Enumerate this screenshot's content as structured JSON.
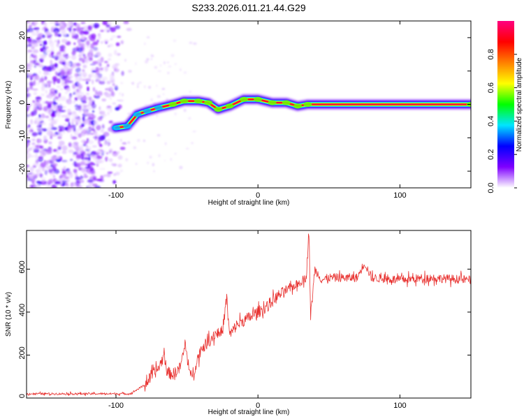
{
  "title": "S233.2026.011.21.44.G29",
  "chart_data": [
    {
      "type": "heatmap",
      "name": "spectrogram",
      "xlabel": "Height of straight line (km)",
      "ylabel": "Frequency (Hz)",
      "xlim": [
        -163,
        150
      ],
      "ylim": [
        -25,
        25
      ],
      "xticks": [
        -100,
        0,
        100
      ],
      "yticks": [
        -20,
        -10,
        0,
        10,
        20
      ],
      "noise_region": {
        "x_from": -163,
        "x_to": -90
      },
      "ridge": [
        {
          "x": -100,
          "y": -7
        },
        {
          "x": -92,
          "y": -6.5
        },
        {
          "x": -85,
          "y": -3
        },
        {
          "x": -78,
          "y": -2
        },
        {
          "x": -70,
          "y": -1
        },
        {
          "x": -60,
          "y": 0
        },
        {
          "x": -52,
          "y": 1
        },
        {
          "x": -42,
          "y": 1
        },
        {
          "x": -35,
          "y": 0.5
        },
        {
          "x": -28,
          "y": -1.5
        },
        {
          "x": -20,
          "y": -0.5
        },
        {
          "x": -10,
          "y": 1.5
        },
        {
          "x": 0,
          "y": 1.5
        },
        {
          "x": 10,
          "y": 0.5
        },
        {
          "x": 20,
          "y": 0.5
        },
        {
          "x": 28,
          "y": -0.5
        },
        {
          "x": 35,
          "y": 0
        },
        {
          "x": 150,
          "y": 0
        }
      ],
      "colorbar": {
        "label": "Normalized spectral amplitude",
        "ticks": [
          0.0,
          0.2,
          0.4,
          0.6,
          0.8
        ],
        "colors": [
          "#ffffff",
          "#7f00ff",
          "#0000ff",
          "#00e5ff",
          "#00ff00",
          "#ffff00",
          "#ff8000",
          "#ff0000",
          "#ff0080"
        ]
      }
    },
    {
      "type": "line",
      "name": "snr",
      "xlabel": "Height of straight line (km)",
      "ylabel": "SNR (10 * v/v)",
      "xlim": [
        -163,
        150
      ],
      "ylim": [
        0,
        780
      ],
      "xticks": [
        -100,
        0,
        100
      ],
      "yticks": [
        0,
        200,
        400,
        600
      ],
      "color": "#e8312f",
      "series": [
        {
          "name": "SNR",
          "x": [
            -163,
            -90,
            -80,
            -75,
            -70,
            -66,
            -64,
            -60,
            -55,
            -51,
            -48,
            -45,
            -40,
            -35,
            -30,
            -25,
            -22,
            -20,
            -15,
            -10,
            -5,
            0,
            5,
            10,
            15,
            20,
            25,
            30,
            34,
            36,
            37,
            40,
            45,
            50,
            60,
            70,
            75,
            80,
            100,
            120,
            150
          ],
          "values": [
            20,
            20,
            60,
            100,
            140,
            200,
            120,
            110,
            140,
            250,
            100,
            130,
            230,
            260,
            300,
            310,
            470,
            290,
            340,
            360,
            380,
            400,
            420,
            450,
            480,
            500,
            520,
            540,
            560,
            780,
            370,
            600,
            550,
            560,
            560,
            560,
            630,
            560,
            550,
            560,
            550
          ]
        }
      ]
    }
  ]
}
